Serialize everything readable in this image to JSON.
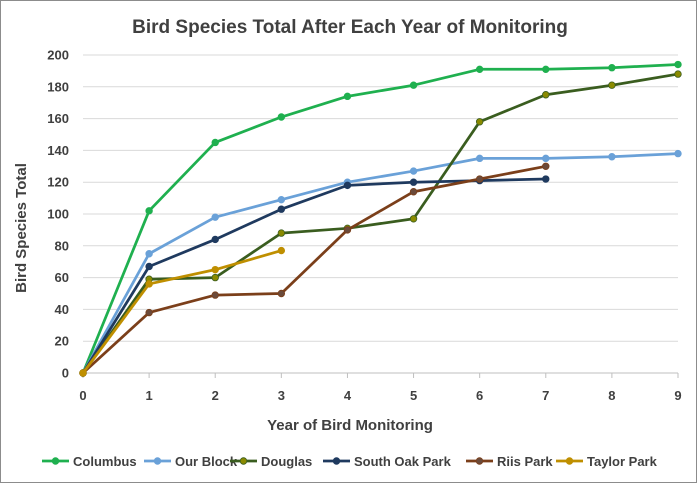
{
  "chart_data": {
    "type": "line",
    "title": "Bird Species Total After Each Year of Monitoring",
    "xlabel": "Year of Bird Monitoring",
    "ylabel": "Bird Species Total",
    "xlim": [
      0,
      9
    ],
    "ylim": [
      0,
      200
    ],
    "x_ticks": [
      0,
      1,
      2,
      3,
      4,
      5,
      6,
      7,
      8,
      9
    ],
    "y_ticks": [
      0,
      20,
      40,
      60,
      80,
      100,
      120,
      140,
      160,
      180,
      200
    ],
    "grid": "horizontal",
    "legend_position": "bottom",
    "series": [
      {
        "name": "Columbus",
        "color": "#1fb04f",
        "marker_color": "#1fb04f",
        "x": [
          0,
          1,
          2,
          3,
          4,
          5,
          6,
          7,
          8,
          9
        ],
        "y": [
          0,
          102,
          145,
          161,
          174,
          181,
          191,
          191,
          192,
          194
        ]
      },
      {
        "name": "Our Block",
        "color": "#6aa1d8",
        "marker_color": "#6aa1d8",
        "x": [
          0,
          1,
          2,
          3,
          4,
          5,
          6,
          7,
          8,
          9
        ],
        "y": [
          0,
          75,
          98,
          109,
          120,
          127,
          135,
          135,
          136,
          138
        ]
      },
      {
        "name": "Douglas",
        "color": "#3a5d1f",
        "marker_color": "#8a8a00",
        "x": [
          0,
          1,
          2,
          3,
          4,
          5,
          6,
          7,
          8,
          9
        ],
        "y": [
          0,
          59,
          60,
          88,
          91,
          97,
          158,
          175,
          181,
          188
        ]
      },
      {
        "name": "South Oak Park",
        "color": "#1f3a5f",
        "marker_color": "#1f3a5f",
        "x": [
          0,
          1,
          2,
          3,
          4,
          5,
          6,
          7
        ],
        "y": [
          0,
          67,
          84,
          103,
          118,
          120,
          121,
          122
        ]
      },
      {
        "name": "Riis Park",
        "color": "#7b3f1a",
        "marker_color": "#6b4a3a",
        "x": [
          0,
          1,
          2,
          3,
          4,
          5,
          6,
          7
        ],
        "y": [
          0,
          38,
          49,
          50,
          90,
          114,
          122,
          130
        ]
      },
      {
        "name": "Taylor Park",
        "color": "#bf8f00",
        "marker_color": "#bf8f00",
        "x": [
          0,
          1,
          2,
          3
        ],
        "y": [
          0,
          56,
          65,
          77
        ]
      }
    ]
  }
}
